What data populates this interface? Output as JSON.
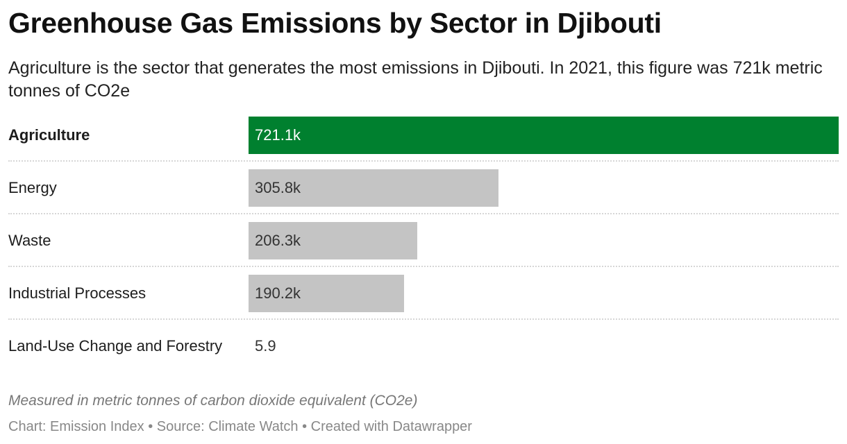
{
  "chart_data": {
    "type": "bar",
    "orientation": "horizontal",
    "title": "Greenhouse Gas Emissions by Sector in Djibouti",
    "subtitle": "Agriculture is the sector that generates the most emissions in Djibouti. In 2021, this figure was 721k metric tonnes of CO2e",
    "categories": [
      "Agriculture",
      "Energy",
      "Waste",
      "Industrial Processes",
      "Land-Use Change and Forestry"
    ],
    "values": [
      721100,
      305800,
      206300,
      190200,
      5.9
    ],
    "value_labels": [
      "721.1k",
      "305.8k",
      "206.3k",
      "190.2k",
      "5.9"
    ],
    "highlight_index": 0,
    "colors": {
      "highlight": "#00802f",
      "default": "#c4c4c4"
    },
    "xlim": [
      0,
      721100
    ],
    "grid": false,
    "note": "Measured in metric tonnes of carbon dioxide equivalent (CO2e)",
    "footer": "Chart: Emission Index • Source: Climate Watch • Created with Datawrapper"
  }
}
